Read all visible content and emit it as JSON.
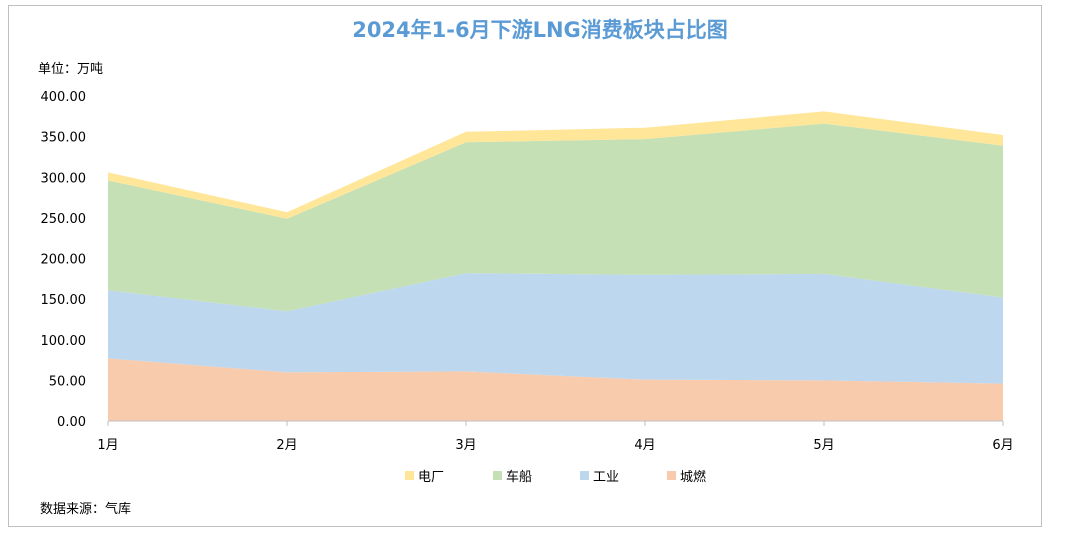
{
  "title": "2024年1-6月下游LNG消费板块占比图",
  "unit_label": "单位：万吨",
  "source_label": "数据来源：气库",
  "chart_data": {
    "type": "area",
    "stacked": true,
    "title": "2024年1-6月下游LNG消费板块占比图",
    "ylabel": "单位：万吨",
    "xlabel": "",
    "categories": [
      "1月",
      "2月",
      "3月",
      "4月",
      "5月",
      "6月"
    ],
    "ylim": [
      0,
      400
    ],
    "yticks": [
      "0.00",
      "50.00",
      "100.00",
      "150.00",
      "200.00",
      "250.00",
      "300.00",
      "350.00",
      "400.00"
    ],
    "grid": false,
    "legend_position": "bottom",
    "series": [
      {
        "name": "城燃",
        "color": "#f8cbad",
        "values": [
          77,
          60,
          61,
          51,
          50,
          46
        ]
      },
      {
        "name": "工业",
        "color": "#bdd7ee",
        "values": [
          84,
          75,
          121,
          129,
          131,
          106
        ]
      },
      {
        "name": "车船",
        "color": "#c5e0b4",
        "values": [
          135,
          114,
          161,
          167,
          185,
          187
        ]
      },
      {
        "name": "电厂",
        "color": "#ffe699",
        "values": [
          10,
          8,
          13,
          14,
          15,
          13
        ]
      }
    ],
    "legend_order": [
      "电厂",
      "车船",
      "工业",
      "城燃"
    ]
  }
}
